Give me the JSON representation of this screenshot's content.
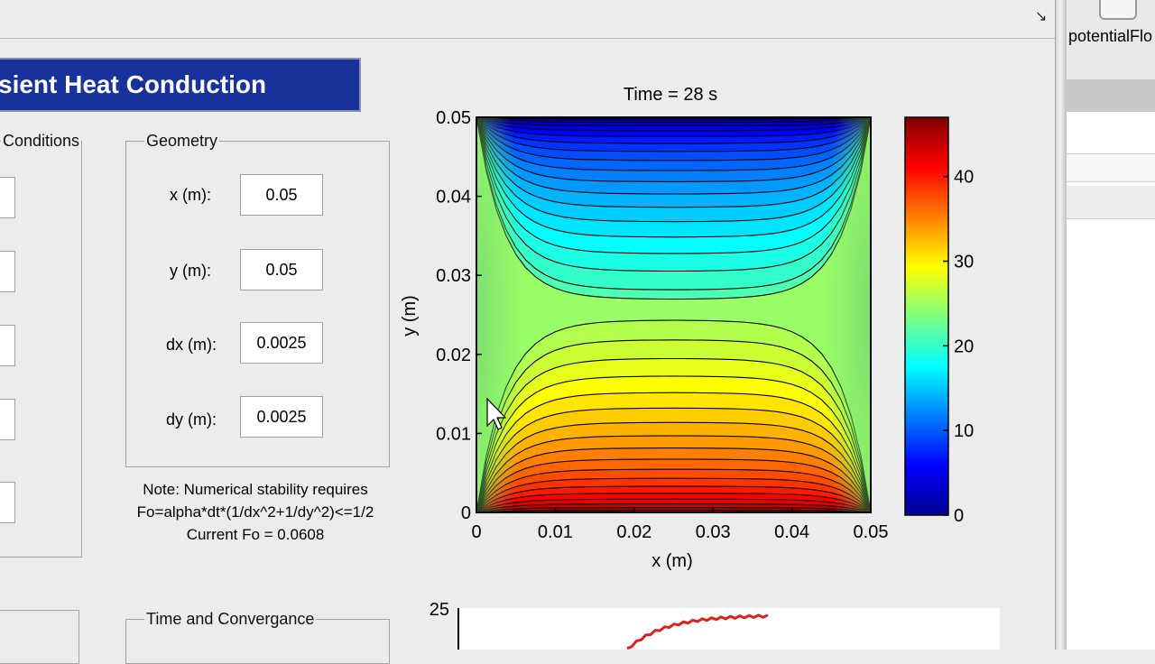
{
  "window": {
    "resize_glyph": "↘"
  },
  "banner": {
    "title": "sient Heat Conduction"
  },
  "conditions_panel": {
    "legend": "Conditions"
  },
  "geometry_panel": {
    "legend": "Geometry",
    "fields": [
      {
        "label": "x (m):",
        "value": "0.05"
      },
      {
        "label": "y (m):",
        "value": "0.05"
      },
      {
        "label": "dx (m):",
        "value": "0.0025"
      },
      {
        "label": "dy (m):",
        "value": "0.0025"
      }
    ]
  },
  "note": {
    "line1": "Note: Numerical stability requires",
    "line2": "Fo=alpha*dt*(1/dx^2+1/dy^2)<=1/2",
    "line3": "Current Fo = 0.0608"
  },
  "time_panel": {
    "legend": "Time and Convergance"
  },
  "contour_plot": {
    "title": "Time = 28 s",
    "xlabel": "x (m)",
    "ylabel": "y (m)",
    "xticks": [
      "0",
      "0.01",
      "0.02",
      "0.03",
      "0.04",
      "0.05"
    ],
    "yticks": [
      "0",
      "0.01",
      "0.02",
      "0.03",
      "0.04",
      "0.05"
    ],
    "colorbar_ticks": [
      "0",
      "10",
      "20",
      "30",
      "40"
    ],
    "colormap": "jet",
    "color_range": [
      0,
      47
    ]
  },
  "bottom_plot": {
    "ytick_top": "25",
    "series_color": "#e0201a"
  },
  "side_app": {
    "label": "potentialFlo"
  }
}
